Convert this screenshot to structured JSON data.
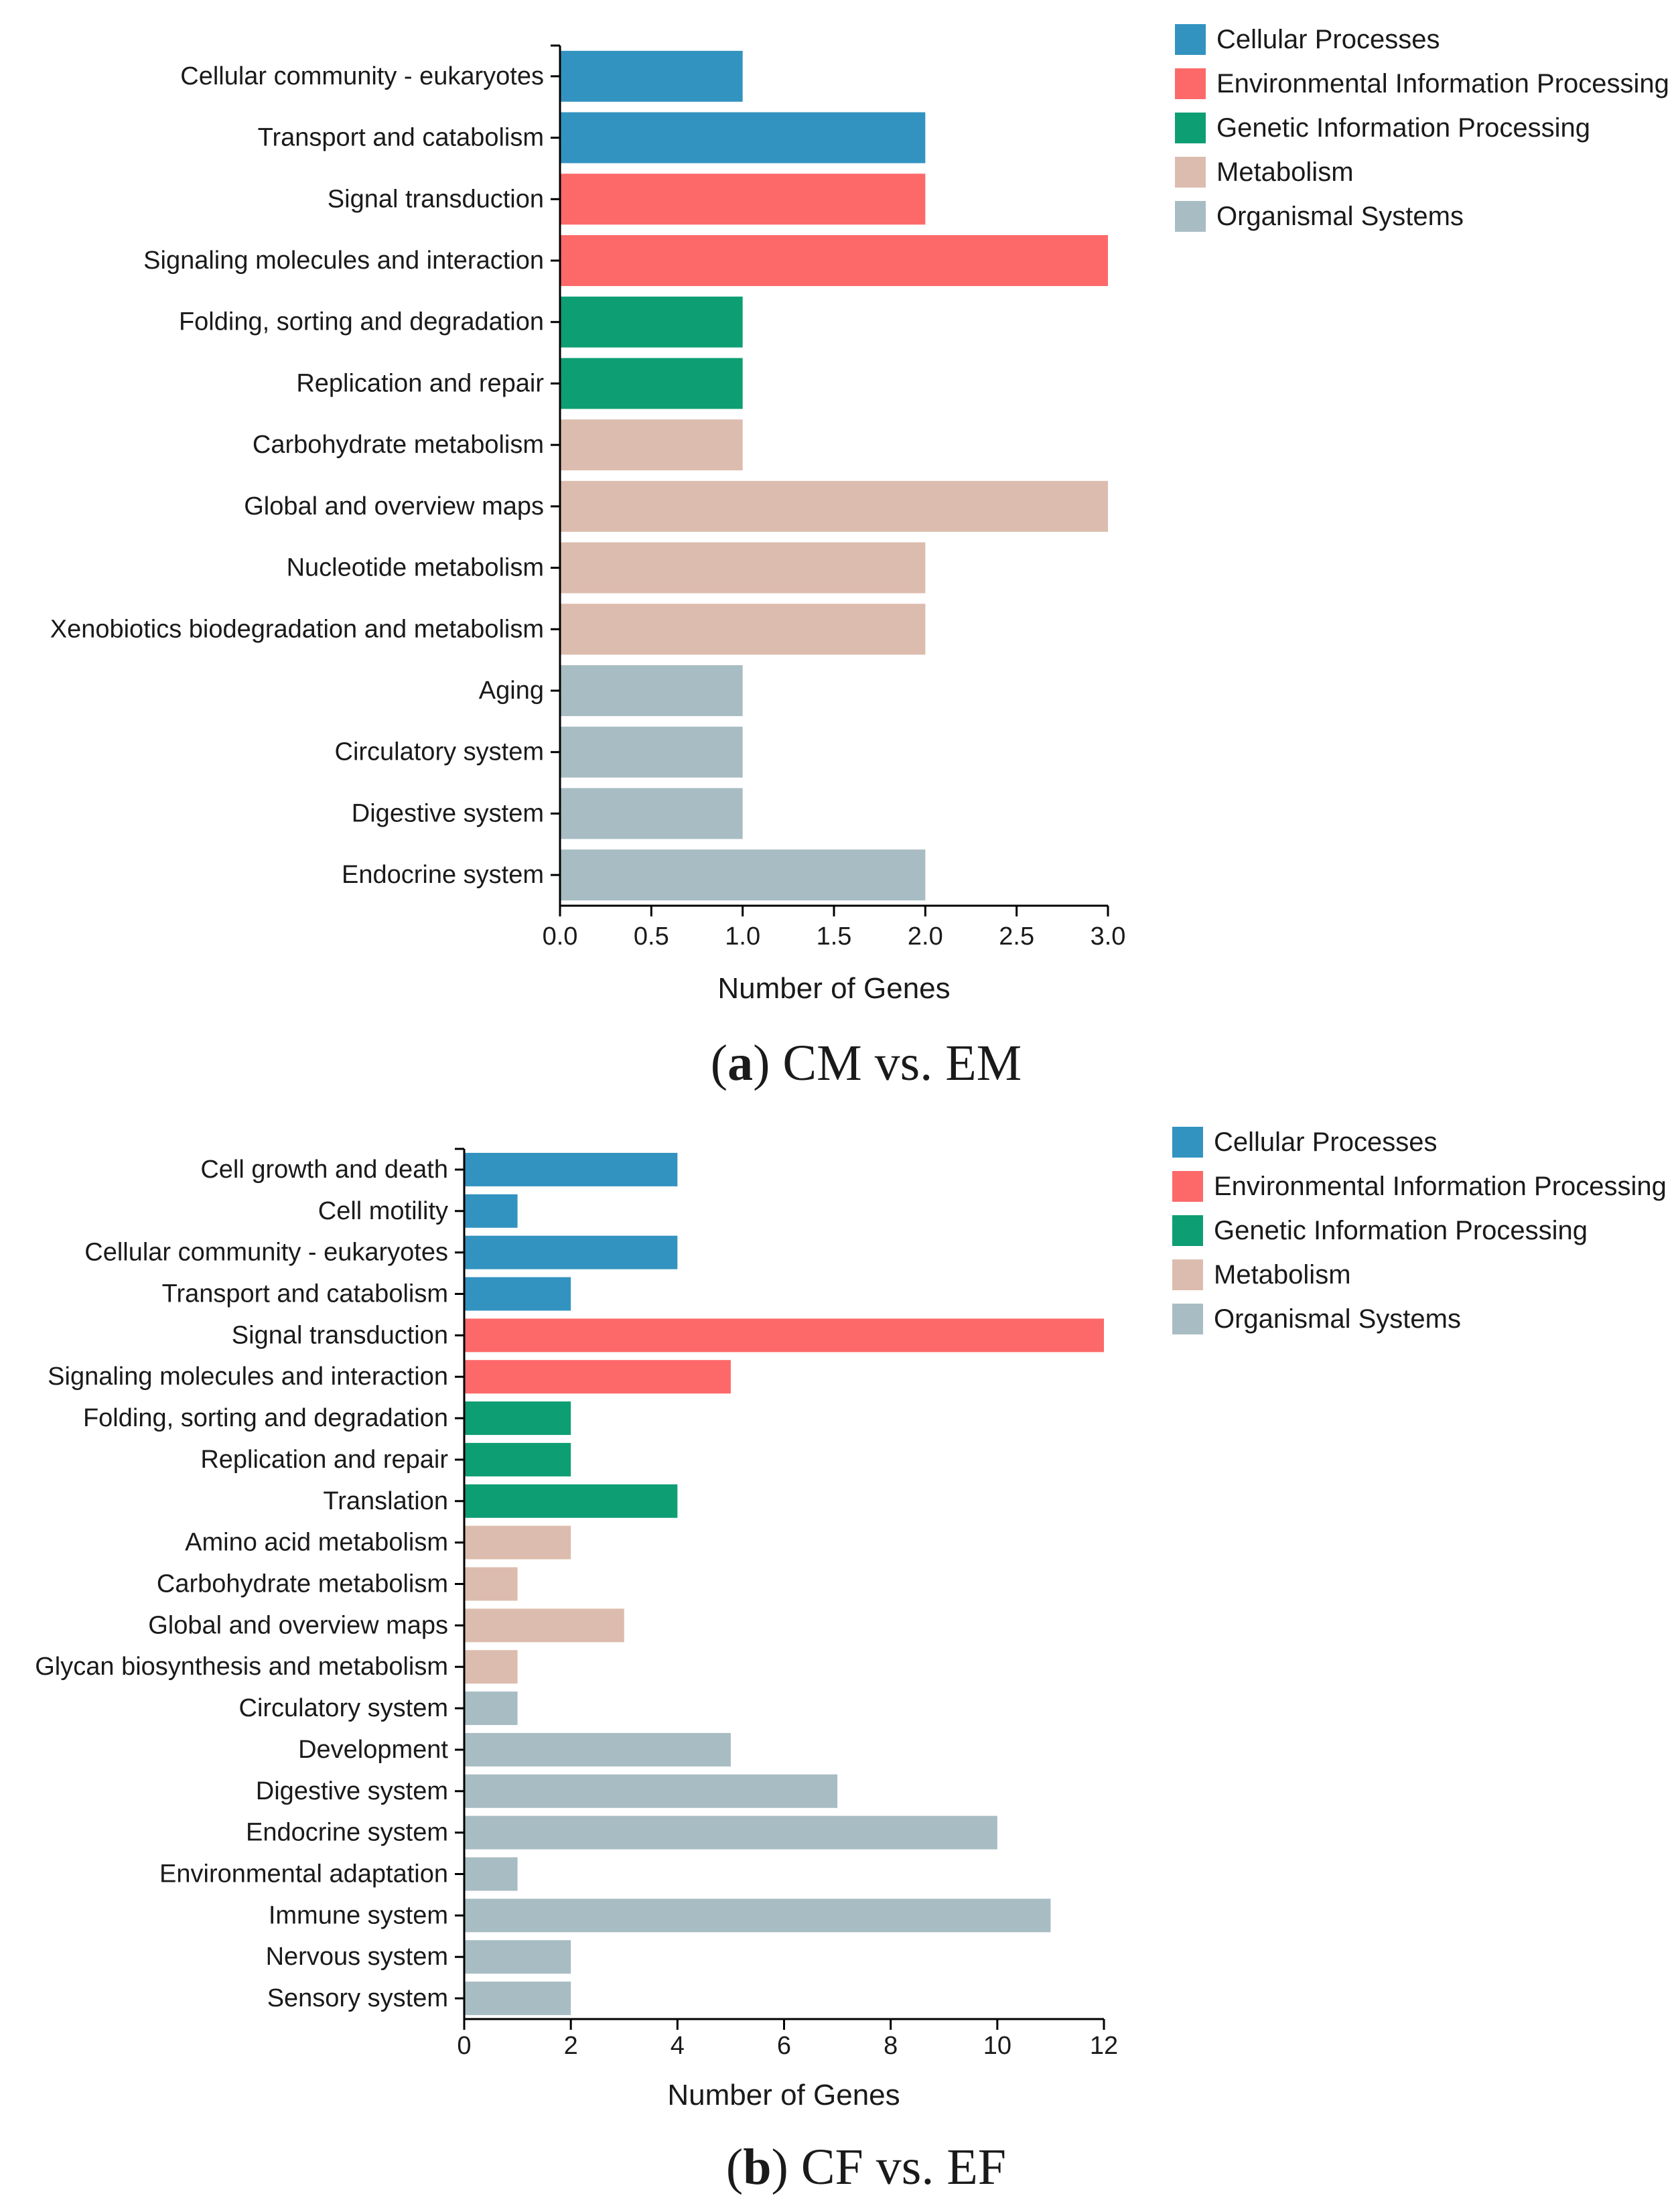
{
  "colors": {
    "Cellular Processes": "#3393c0",
    "Environmental Information Processing": "#fd6969",
    "Genetic Information Processing": "#0e9e73",
    "Metabolism": "#dcbcae",
    "Organismal Systems": "#a8bcc3"
  },
  "chart_data": [
    {
      "type": "bar",
      "orientation": "horizontal",
      "caption_letter": "a",
      "caption_rest": " CM vs. EM",
      "xlabel": "Number of Genes",
      "xlim": [
        0,
        3
      ],
      "ticks": [
        "0.0",
        "0.5",
        "1.0",
        "1.5",
        "2.0",
        "2.5",
        "3.0"
      ],
      "legend": [
        "Cellular Processes",
        "Environmental Information Processing",
        "Genetic Information Processing",
        "Metabolism",
        "Organismal Systems"
      ],
      "bars": [
        {
          "label": "Cellular community - eukaryotes",
          "value": 1,
          "group": "Cellular Processes"
        },
        {
          "label": "Transport and catabolism",
          "value": 2,
          "group": "Cellular Processes"
        },
        {
          "label": "Signal transduction",
          "value": 2,
          "group": "Environmental Information Processing"
        },
        {
          "label": "Signaling molecules and interaction",
          "value": 3,
          "group": "Environmental Information Processing"
        },
        {
          "label": "Folding, sorting and degradation",
          "value": 1,
          "group": "Genetic Information Processing"
        },
        {
          "label": "Replication and repair",
          "value": 1,
          "group": "Genetic Information Processing"
        },
        {
          "label": "Carbohydrate metabolism",
          "value": 1,
          "group": "Metabolism"
        },
        {
          "label": "Global and overview maps",
          "value": 3,
          "group": "Metabolism"
        },
        {
          "label": "Nucleotide metabolism",
          "value": 2,
          "group": "Metabolism"
        },
        {
          "label": "Xenobiotics biodegradation and metabolism",
          "value": 2,
          "group": "Metabolism"
        },
        {
          "label": "Aging",
          "value": 1,
          "group": "Organismal Systems"
        },
        {
          "label": "Circulatory system",
          "value": 1,
          "group": "Organismal Systems"
        },
        {
          "label": "Digestive system",
          "value": 1,
          "group": "Organismal Systems"
        },
        {
          "label": "Endocrine system",
          "value": 2,
          "group": "Organismal Systems"
        }
      ]
    },
    {
      "type": "bar",
      "orientation": "horizontal",
      "caption_letter": "b",
      "caption_rest": " CF vs. EF",
      "xlabel": "Number of Genes",
      "xlim": [
        0,
        12
      ],
      "ticks": [
        "0",
        "2",
        "4",
        "6",
        "8",
        "10",
        "12"
      ],
      "legend": [
        "Cellular Processes",
        "Environmental Information Processing",
        "Genetic Information Processing",
        "Metabolism",
        "Organismal Systems"
      ],
      "bars": [
        {
          "label": "Cell growth and death",
          "value": 4,
          "group": "Cellular Processes"
        },
        {
          "label": "Cell motility",
          "value": 1,
          "group": "Cellular Processes"
        },
        {
          "label": "Cellular community - eukaryotes",
          "value": 4,
          "group": "Cellular Processes"
        },
        {
          "label": "Transport and catabolism",
          "value": 2,
          "group": "Cellular Processes"
        },
        {
          "label": "Signal transduction",
          "value": 12,
          "group": "Environmental Information Processing"
        },
        {
          "label": "Signaling molecules and interaction",
          "value": 5,
          "group": "Environmental Information Processing"
        },
        {
          "label": "Folding, sorting and degradation",
          "value": 2,
          "group": "Genetic Information Processing"
        },
        {
          "label": "Replication and repair",
          "value": 2,
          "group": "Genetic Information Processing"
        },
        {
          "label": "Translation",
          "value": 4,
          "group": "Genetic Information Processing"
        },
        {
          "label": "Amino acid metabolism",
          "value": 2,
          "group": "Metabolism"
        },
        {
          "label": "Carbohydrate metabolism",
          "value": 1,
          "group": "Metabolism"
        },
        {
          "label": "Global and overview maps",
          "value": 3,
          "group": "Metabolism"
        },
        {
          "label": "Glycan biosynthesis and metabolism",
          "value": 1,
          "group": "Metabolism"
        },
        {
          "label": "Circulatory system",
          "value": 1,
          "group": "Organismal Systems"
        },
        {
          "label": "Development",
          "value": 5,
          "group": "Organismal Systems"
        },
        {
          "label": "Digestive system",
          "value": 7,
          "group": "Organismal Systems"
        },
        {
          "label": "Endocrine system",
          "value": 10,
          "group": "Organismal Systems"
        },
        {
          "label": "Environmental adaptation",
          "value": 1,
          "group": "Organismal Systems"
        },
        {
          "label": "Immune system",
          "value": 11,
          "group": "Organismal Systems"
        },
        {
          "label": "Nervous system",
          "value": 2,
          "group": "Organismal Systems"
        },
        {
          "label": "Sensory system",
          "value": 2,
          "group": "Organismal Systems"
        }
      ]
    }
  ]
}
